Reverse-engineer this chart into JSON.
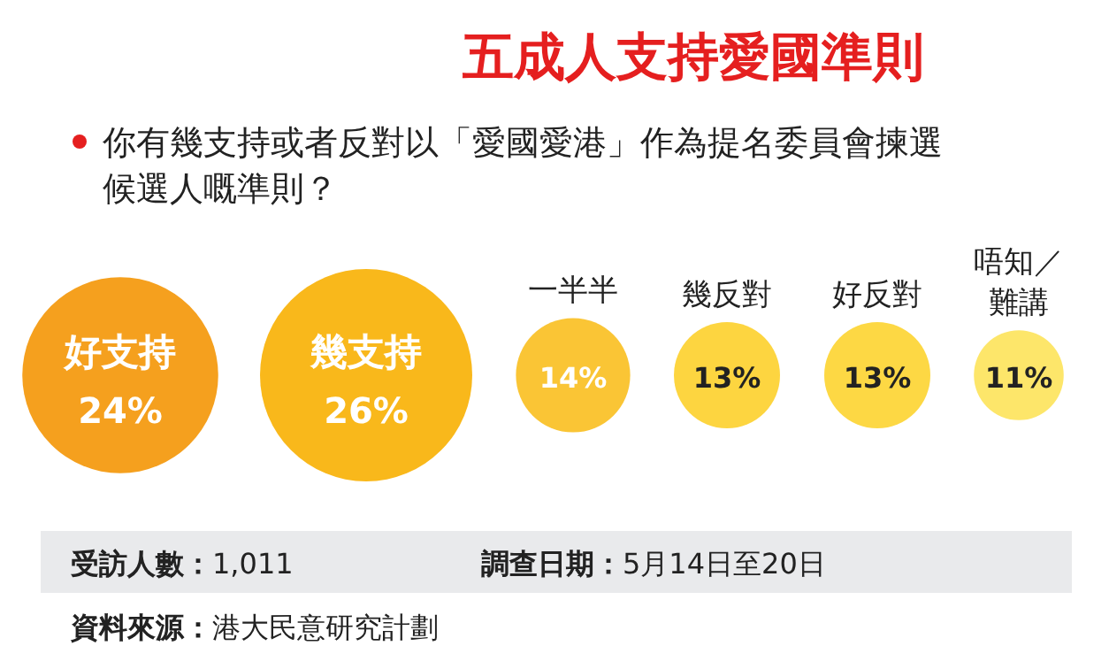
{
  "chart_data": {
    "type": "other",
    "title": "五成人支持愛國準則",
    "subtitle": "你有幾支持或者反對以「愛國愛港」作為提名委員會揀選候選人嘅準則？",
    "categories": [
      "好支持",
      "幾支持",
      "一半半",
      "幾反對",
      "好反對",
      "唔知／難講"
    ],
    "values": [
      24,
      26,
      14,
      13,
      13,
      11
    ],
    "value_labels": [
      "24%",
      "26%",
      "14%",
      "13%",
      "13%",
      "11%"
    ],
    "colors": [
      "#f5a01e",
      "#f9b81b",
      "#fac535",
      "#fdd540",
      "#fdd844",
      "#fde66a"
    ],
    "annotations": [
      "**受訪人數：**1,011",
      "**調查日期：**5月14日至20日",
      "**資料來源：**港大民意研究計劃"
    ]
  }
}
